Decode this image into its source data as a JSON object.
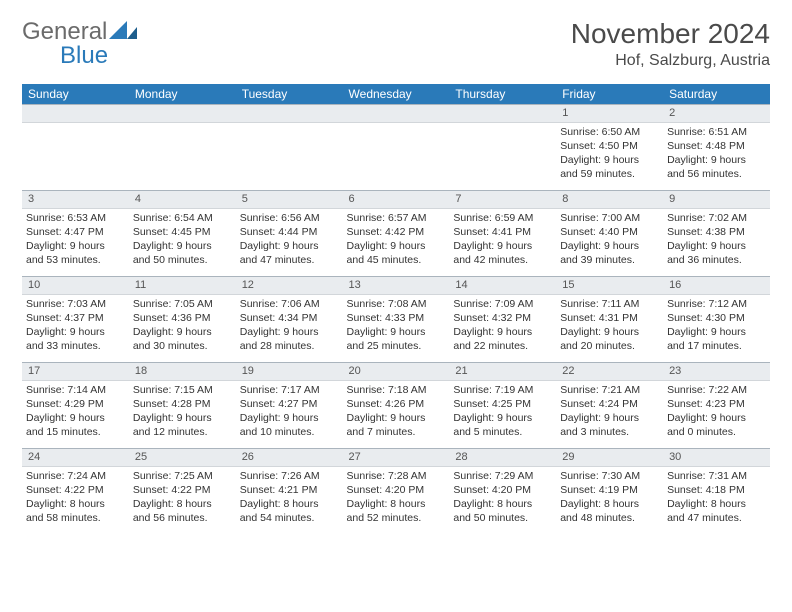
{
  "logo": {
    "word1": "General",
    "word2": "Blue",
    "mark_color": "#2a7ab9"
  },
  "title": "November 2024",
  "subtitle": "Hof, Salzburg, Austria",
  "colors": {
    "header_bg": "#2a7ab9",
    "header_fg": "#ffffff",
    "daynum_bg": "#e9ecef",
    "cell_border": "#aab4bd",
    "text": "#333333"
  },
  "weekdays": [
    "Sunday",
    "Monday",
    "Tuesday",
    "Wednesday",
    "Thursday",
    "Friday",
    "Saturday"
  ],
  "days": [
    {
      "n": 1,
      "sunrise": "6:50 AM",
      "sunset": "4:50 PM",
      "dl_h": 9,
      "dl_m": 59
    },
    {
      "n": 2,
      "sunrise": "6:51 AM",
      "sunset": "4:48 PM",
      "dl_h": 9,
      "dl_m": 56
    },
    {
      "n": 3,
      "sunrise": "6:53 AM",
      "sunset": "4:47 PM",
      "dl_h": 9,
      "dl_m": 53
    },
    {
      "n": 4,
      "sunrise": "6:54 AM",
      "sunset": "4:45 PM",
      "dl_h": 9,
      "dl_m": 50
    },
    {
      "n": 5,
      "sunrise": "6:56 AM",
      "sunset": "4:44 PM",
      "dl_h": 9,
      "dl_m": 47
    },
    {
      "n": 6,
      "sunrise": "6:57 AM",
      "sunset": "4:42 PM",
      "dl_h": 9,
      "dl_m": 45
    },
    {
      "n": 7,
      "sunrise": "6:59 AM",
      "sunset": "4:41 PM",
      "dl_h": 9,
      "dl_m": 42
    },
    {
      "n": 8,
      "sunrise": "7:00 AM",
      "sunset": "4:40 PM",
      "dl_h": 9,
      "dl_m": 39
    },
    {
      "n": 9,
      "sunrise": "7:02 AM",
      "sunset": "4:38 PM",
      "dl_h": 9,
      "dl_m": 36
    },
    {
      "n": 10,
      "sunrise": "7:03 AM",
      "sunset": "4:37 PM",
      "dl_h": 9,
      "dl_m": 33
    },
    {
      "n": 11,
      "sunrise": "7:05 AM",
      "sunset": "4:36 PM",
      "dl_h": 9,
      "dl_m": 30
    },
    {
      "n": 12,
      "sunrise": "7:06 AM",
      "sunset": "4:34 PM",
      "dl_h": 9,
      "dl_m": 28
    },
    {
      "n": 13,
      "sunrise": "7:08 AM",
      "sunset": "4:33 PM",
      "dl_h": 9,
      "dl_m": 25
    },
    {
      "n": 14,
      "sunrise": "7:09 AM",
      "sunset": "4:32 PM",
      "dl_h": 9,
      "dl_m": 22
    },
    {
      "n": 15,
      "sunrise": "7:11 AM",
      "sunset": "4:31 PM",
      "dl_h": 9,
      "dl_m": 20
    },
    {
      "n": 16,
      "sunrise": "7:12 AM",
      "sunset": "4:30 PM",
      "dl_h": 9,
      "dl_m": 17
    },
    {
      "n": 17,
      "sunrise": "7:14 AM",
      "sunset": "4:29 PM",
      "dl_h": 9,
      "dl_m": 15
    },
    {
      "n": 18,
      "sunrise": "7:15 AM",
      "sunset": "4:28 PM",
      "dl_h": 9,
      "dl_m": 12
    },
    {
      "n": 19,
      "sunrise": "7:17 AM",
      "sunset": "4:27 PM",
      "dl_h": 9,
      "dl_m": 10
    },
    {
      "n": 20,
      "sunrise": "7:18 AM",
      "sunset": "4:26 PM",
      "dl_h": 9,
      "dl_m": 7
    },
    {
      "n": 21,
      "sunrise": "7:19 AM",
      "sunset": "4:25 PM",
      "dl_h": 9,
      "dl_m": 5
    },
    {
      "n": 22,
      "sunrise": "7:21 AM",
      "sunset": "4:24 PM",
      "dl_h": 9,
      "dl_m": 3
    },
    {
      "n": 23,
      "sunrise": "7:22 AM",
      "sunset": "4:23 PM",
      "dl_h": 9,
      "dl_m": 0
    },
    {
      "n": 24,
      "sunrise": "7:24 AM",
      "sunset": "4:22 PM",
      "dl_h": 8,
      "dl_m": 58
    },
    {
      "n": 25,
      "sunrise": "7:25 AM",
      "sunset": "4:22 PM",
      "dl_h": 8,
      "dl_m": 56
    },
    {
      "n": 26,
      "sunrise": "7:26 AM",
      "sunset": "4:21 PM",
      "dl_h": 8,
      "dl_m": 54
    },
    {
      "n": 27,
      "sunrise": "7:28 AM",
      "sunset": "4:20 PM",
      "dl_h": 8,
      "dl_m": 52
    },
    {
      "n": 28,
      "sunrise": "7:29 AM",
      "sunset": "4:20 PM",
      "dl_h": 8,
      "dl_m": 50
    },
    {
      "n": 29,
      "sunrise": "7:30 AM",
      "sunset": "4:19 PM",
      "dl_h": 8,
      "dl_m": 48
    },
    {
      "n": 30,
      "sunrise": "7:31 AM",
      "sunset": "4:18 PM",
      "dl_h": 8,
      "dl_m": 47
    }
  ],
  "first_weekday_index": 5,
  "labels": {
    "sunrise": "Sunrise:",
    "sunset": "Sunset:",
    "daylight_prefix": "Daylight:",
    "hours_word": "hours",
    "and_word": "and",
    "minutes_word": "minutes."
  }
}
